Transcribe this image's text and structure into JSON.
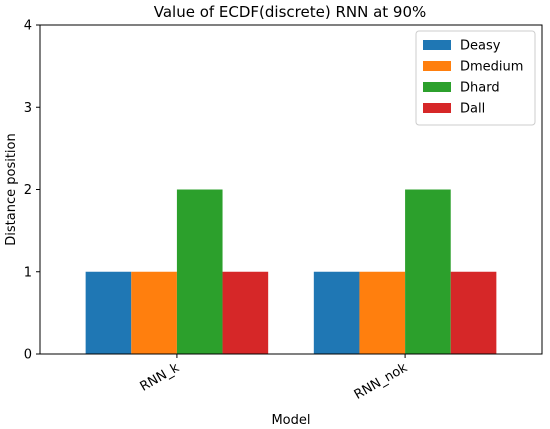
{
  "chart_data": {
    "type": "bar",
    "title": "Value of ECDF(discrete) RNN  at 90%",
    "xlabel": "Model",
    "ylabel": "Distance position",
    "categories": [
      "RNN_k",
      "RNN_nok"
    ],
    "ylim": [
      0,
      4
    ],
    "yticks": [
      0,
      1,
      2,
      3,
      4
    ],
    "grid": false,
    "legend_position": "top-right",
    "series": [
      {
        "name": "Deasy",
        "color": "#1f77b4",
        "values": [
          1,
          1
        ]
      },
      {
        "name": "Dmedium",
        "color": "#ff7f0e",
        "values": [
          1,
          1
        ]
      },
      {
        "name": "Dhard",
        "color": "#2ca02c",
        "values": [
          2,
          2
        ]
      },
      {
        "name": "Dall",
        "color": "#d62728",
        "values": [
          1,
          1
        ]
      }
    ]
  }
}
